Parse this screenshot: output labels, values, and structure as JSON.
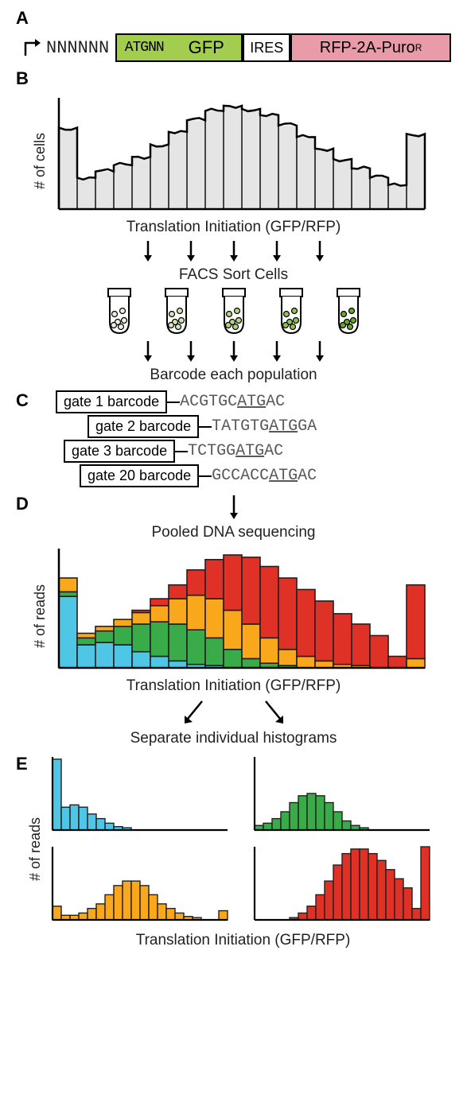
{
  "panels": {
    "A": {
      "label": "A"
    },
    "B": {
      "label": "B"
    },
    "C": {
      "label": "C"
    },
    "D": {
      "label": "D"
    },
    "E": {
      "label": "E"
    }
  },
  "construct": {
    "upstream_random": "NNNNNN",
    "atg_box": "ATGNN",
    "gfp": "GFP",
    "ires": "IRES",
    "rfp": "RFP-2A-Puro",
    "rfp_super": "R",
    "colors": {
      "gfp_box": "#a3cd4f",
      "ires_box": "#ffffff",
      "rfp_box": "#e99ba9",
      "border": "#000000",
      "text": "#221f20"
    }
  },
  "panelB": {
    "y_label": "# of cells",
    "x_label": "Translation Initiation (GFP/RFP)",
    "step_facs": "FACS Sort Cells",
    "step_barcode": "Barcode each population",
    "histogram": {
      "fill": "#e5e5e5",
      "stroke": "#000000",
      "stroke_width": 2,
      "nbins": 20,
      "heights": [
        78,
        30,
        36,
        42,
        50,
        62,
        74,
        85,
        94,
        99,
        96,
        90,
        80,
        69,
        58,
        48,
        39,
        30,
        23,
        72
      ],
      "gate_divider_color": "#000000"
    },
    "tubes": {
      "count": 5,
      "cell_fills": [
        "#e8f0dc",
        "#d2e4b2",
        "#b2d47f",
        "#90c050",
        "#6aa62c"
      ],
      "stroke": "#000000"
    },
    "arrow_color": "#000000"
  },
  "panelC": {
    "rows": [
      {
        "indent": 0,
        "box": "gate 1 barcode",
        "seq_pre": "ACGTGC",
        "atg": "ATG",
        "seq_post": "AC"
      },
      {
        "indent": 40,
        "box": "gate 2 barcode",
        "seq_pre": "TATGTG",
        "atg": "ATG",
        "seq_post": "GA"
      },
      {
        "indent": 10,
        "box": "gate 3 barcode",
        "seq_pre": "TCTGG",
        "atg": "ATG",
        "seq_post": "AC"
      },
      {
        "indent": 30,
        "box": "gate 20 barcode",
        "seq_pre": "GCCACC",
        "atg": "ATG",
        "seq_post": "AC"
      }
    ],
    "seq_color": "#58585a",
    "box_border": "#000000"
  },
  "panelD": {
    "title": "Pooled DNA sequencing",
    "y_label": "# of reads",
    "x_label": "Translation Initiation (GFP/RFP)",
    "step_separate": "Separate individual histograms",
    "colors": {
      "blue": "#50c6e7",
      "green": "#3aab49",
      "orange": "#f9a81c",
      "red": "#e03127",
      "stroke": "#231f20"
    },
    "nbins": 20,
    "stacks": [
      {
        "blue": 62,
        "green": 4,
        "orange": 12,
        "red": 0
      },
      {
        "blue": 20,
        "green": 6,
        "orange": 4,
        "red": 0
      },
      {
        "blue": 22,
        "green": 10,
        "orange": 4,
        "red": 0
      },
      {
        "blue": 20,
        "green": 16,
        "orange": 6,
        "red": 0
      },
      {
        "blue": 14,
        "green": 24,
        "orange": 10,
        "red": 2
      },
      {
        "blue": 10,
        "green": 30,
        "orange": 14,
        "red": 6
      },
      {
        "blue": 6,
        "green": 32,
        "orange": 22,
        "red": 12
      },
      {
        "blue": 3,
        "green": 30,
        "orange": 30,
        "red": 22
      },
      {
        "blue": 2,
        "green": 24,
        "orange": 34,
        "red": 34
      },
      {
        "blue": 0,
        "green": 16,
        "orange": 34,
        "red": 48
      },
      {
        "blue": 0,
        "green": 8,
        "orange": 30,
        "red": 58
      },
      {
        "blue": 0,
        "green": 4,
        "orange": 22,
        "red": 62
      },
      {
        "blue": 0,
        "green": 2,
        "orange": 14,
        "red": 62
      },
      {
        "blue": 0,
        "green": 0,
        "orange": 10,
        "red": 58
      },
      {
        "blue": 0,
        "green": 0,
        "orange": 6,
        "red": 52
      },
      {
        "blue": 0,
        "green": 0,
        "orange": 3,
        "red": 44
      },
      {
        "blue": 0,
        "green": 0,
        "orange": 2,
        "red": 36
      },
      {
        "blue": 0,
        "green": 0,
        "orange": 0,
        "red": 28
      },
      {
        "blue": 0,
        "green": 0,
        "orange": 0,
        "red": 10
      },
      {
        "blue": 0,
        "green": 0,
        "orange": 8,
        "red": 64
      }
    ]
  },
  "panelE": {
    "y_label": "# of reads",
    "x_label": "Translation Initiation (GFP/RFP)",
    "charts": [
      {
        "color": "#50c6e7",
        "heights": [
          62,
          20,
          22,
          20,
          14,
          10,
          6,
          3,
          2,
          0,
          0,
          0,
          0,
          0,
          0,
          0,
          0,
          0,
          0,
          0
        ]
      },
      {
        "color": "#3aab49",
        "heights": [
          4,
          6,
          10,
          16,
          24,
          30,
          32,
          30,
          24,
          16,
          8,
          4,
          2,
          0,
          0,
          0,
          0,
          0,
          0,
          0
        ]
      },
      {
        "color": "#f9a81c",
        "heights": [
          12,
          4,
          4,
          6,
          10,
          14,
          22,
          30,
          34,
          34,
          30,
          22,
          14,
          10,
          6,
          3,
          2,
          0,
          0,
          8
        ]
      },
      {
        "color": "#e03127",
        "heights": [
          0,
          0,
          0,
          0,
          2,
          6,
          12,
          22,
          34,
          48,
          58,
          62,
          62,
          58,
          52,
          44,
          36,
          28,
          10,
          64
        ]
      }
    ],
    "stroke": "#231f20"
  }
}
